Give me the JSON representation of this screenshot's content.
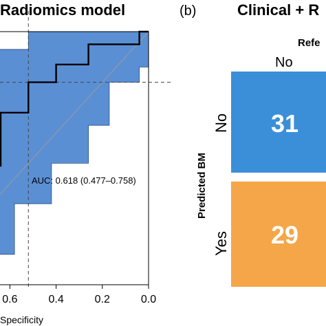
{
  "panel_a": {
    "title": "Radiomics model",
    "auc_text": "AUC: 0.618 (0.477–0.758)",
    "xlabel": "Specificity",
    "colors": {
      "band": "#5b8fd4",
      "band_edge": "#2a4f86",
      "curve": "#000000"
    }
  },
  "panel_b": {
    "label": "(b)",
    "title": "Clinical + R",
    "top_header": "Refe",
    "col_label": "No",
    "ylabel": "Predicted BM",
    "row_labels": [
      "No",
      "Yes"
    ],
    "colors": {
      "cell_no": "#3b8fd8",
      "cell_yes": "#f4a649",
      "text": "#ffffff"
    }
  },
  "chart_data": [
    {
      "type": "line",
      "title": "Radiomics model",
      "xlabel": "Specificity",
      "x_reversed": true,
      "xlim": [
        1.0,
        0.0
      ],
      "ylim": [
        0.0,
        1.0
      ],
      "x_ticks": [
        "0.6",
        "0.4",
        "0.2",
        "0.0"
      ],
      "annotation": "AUC: 0.618 (0.477–0.758)",
      "threshold": {
        "specificity": 0.52,
        "sensitivity": 0.8
      },
      "curve": {
        "x": [
          1.0,
          0.98,
          0.98,
          0.64,
          0.64,
          0.52,
          0.52,
          0.4,
          0.4,
          0.26,
          0.26,
          0.04,
          0.04,
          0.0
        ],
        "y": [
          0.17,
          0.17,
          0.47,
          0.47,
          0.68,
          0.68,
          0.8,
          0.8,
          0.87,
          0.87,
          0.95,
          0.95,
          1.0,
          1.0
        ]
      },
      "ci_upper": {
        "x": [
          1.0,
          0.98,
          0.98,
          0.65,
          0.65,
          0.52,
          0.52,
          0.26,
          0.26,
          0.04,
          0.04,
          0.0
        ],
        "y": [
          0.8,
          0.8,
          0.86,
          0.86,
          0.93,
          0.93,
          1.0,
          1.0,
          1.0,
          1.0,
          1.0,
          1.0
        ]
      },
      "ci_lower": {
        "x": [
          1.0,
          0.85,
          0.85,
          0.71,
          0.71,
          0.58,
          0.58,
          0.42,
          0.42,
          0.26,
          0.26,
          0.17,
          0.17,
          0.04,
          0.04,
          0.02,
          0.0
        ],
        "y": [
          0.0,
          0.0,
          0.06,
          0.06,
          0.12,
          0.12,
          0.32,
          0.32,
          0.48,
          0.48,
          0.63,
          0.63,
          0.8,
          0.8,
          0.86,
          0.86,
          0.86
        ]
      }
    },
    {
      "type": "heatmap",
      "title": "Clinical + R",
      "ylabel": "Predicted BM",
      "columns": [
        "No"
      ],
      "rows": [
        "No",
        "Yes"
      ],
      "values": [
        [
          31
        ],
        [
          29
        ]
      ]
    }
  ]
}
